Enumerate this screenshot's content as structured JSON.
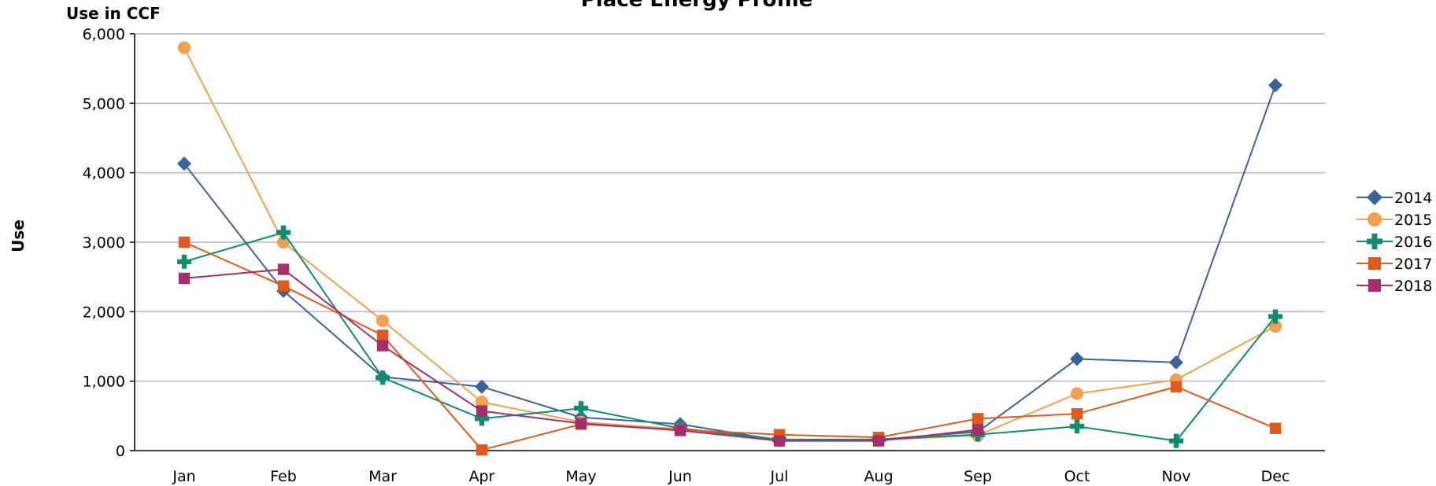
{
  "chart_data": {
    "type": "line",
    "title": "Place Energy Profile",
    "unit_label": "Use in CCF",
    "ylabel": "Use",
    "xlabel": "",
    "categories": [
      "Jan",
      "Feb",
      "Mar",
      "Apr",
      "May",
      "Jun",
      "Jul",
      "Aug",
      "Sep",
      "Oct",
      "Nov",
      "Dec"
    ],
    "ylim": [
      0,
      6000
    ],
    "yticks": [
      0,
      1000,
      2000,
      3000,
      4000,
      5000,
      6000
    ],
    "ytick_labels": [
      "0",
      "1,000",
      "2,000",
      "3,000",
      "4,000",
      "5,000",
      "6,000"
    ],
    "grid": true,
    "legend_position": "right",
    "series": [
      {
        "name": "2014",
        "color": "#3a6496",
        "marker": "diamond",
        "values": [
          4130,
          2300,
          1060,
          920,
          480,
          380,
          150,
          160,
          270,
          1320,
          1270,
          5260
        ]
      },
      {
        "name": "2015",
        "color": "#f0a050",
        "marker": "circle",
        "values": [
          5800,
          3000,
          1870,
          700,
          410,
          310,
          140,
          150,
          220,
          820,
          1020,
          1790
        ]
      },
      {
        "name": "2016",
        "color": "#0e8c6f",
        "marker": "plus",
        "values": [
          2720,
          3140,
          1050,
          460,
          610,
          320,
          160,
          160,
          230,
          350,
          140,
          1930
        ]
      },
      {
        "name": "2017",
        "color": "#e0591f",
        "marker": "square",
        "values": [
          3000,
          2370,
          1660,
          10,
          380,
          300,
          230,
          190,
          460,
          530,
          920,
          320
        ]
      },
      {
        "name": "2018",
        "color": "#a3306c",
        "marker": "square",
        "values": [
          2480,
          2610,
          1510,
          570,
          390,
          290,
          140,
          140,
          300,
          null,
          null,
          null
        ]
      }
    ]
  }
}
